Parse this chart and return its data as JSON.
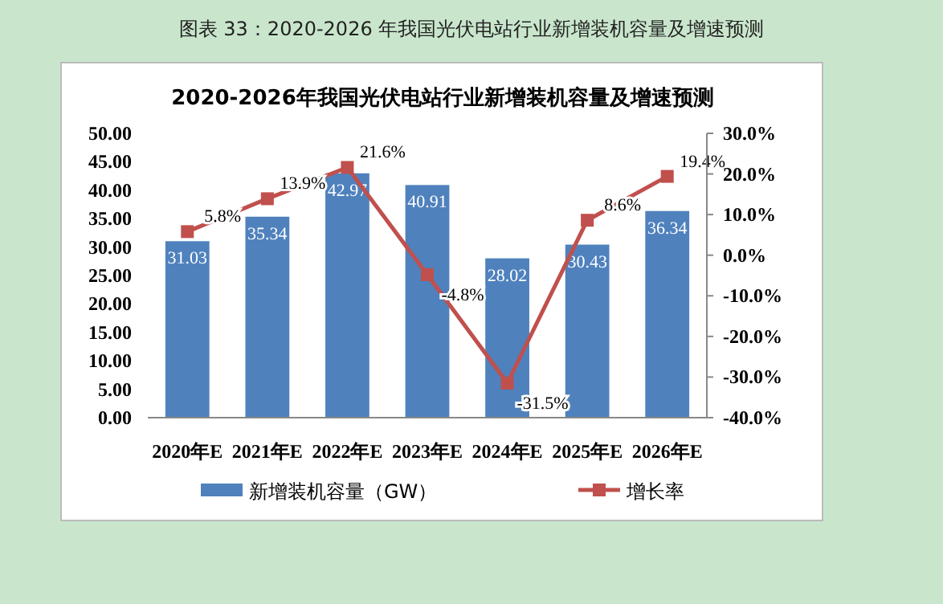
{
  "chart_data": {
    "type": "bar",
    "title": "图表  33：2020-2026 年我国光伏电站行业新增装机容量及增速预测",
    "subtitle": "2020-2026年我国光伏电站行业新增装机容量及增速预测",
    "categories": [
      "2020年E",
      "2021年E",
      "2022年E",
      "2023年E",
      "2024年E",
      "2025年E",
      "2026年E"
    ],
    "series": [
      {
        "name": "新增装机容量（GW）",
        "color": "#4f81bd",
        "values": [
          31.03,
          35.34,
          42.97,
          40.91,
          28.02,
          30.43,
          36.34
        ],
        "value_labels": [
          "31.03",
          "35.34",
          "42.97",
          "40.91",
          "28.02",
          "30.43",
          "36.34"
        ]
      },
      {
        "name": "增长率",
        "type": "line",
        "axis": "y2",
        "color": "#c0504d",
        "marker": "square",
        "values": [
          5.8,
          13.9,
          21.6,
          -4.8,
          -31.5,
          8.6,
          19.4
        ],
        "value_labels": [
          "5.8%",
          "13.9%",
          "21.6%",
          "-4.8%",
          "-31.5%",
          "8.6%",
          "19.4%"
        ]
      }
    ],
    "ylim": [
      0,
      50
    ],
    "yticks": [
      {
        "value": 0,
        "label": "0.00"
      },
      {
        "value": 5,
        "label": "5.00"
      },
      {
        "value": 10,
        "label": "10.00"
      },
      {
        "value": 15,
        "label": "15.00"
      },
      {
        "value": 20,
        "label": "20.00"
      },
      {
        "value": 25,
        "label": "25.00"
      },
      {
        "value": 30,
        "label": "30.00"
      },
      {
        "value": 35,
        "label": "35.00"
      },
      {
        "value": 40,
        "label": "40.00"
      },
      {
        "value": 45,
        "label": "45.00"
      },
      {
        "value": 50,
        "label": "50.00"
      }
    ],
    "y2lim": [
      -40,
      30
    ],
    "y2ticks": [
      {
        "value": -40,
        "label": "-40.0%"
      },
      {
        "value": -30,
        "label": "-30.0%"
      },
      {
        "value": -20,
        "label": "-20.0%"
      },
      {
        "value": -10,
        "label": "-10.0%"
      },
      {
        "value": 0,
        "label": "0.0%"
      },
      {
        "value": 10,
        "label": "10.0%"
      },
      {
        "value": 20,
        "label": "20.0%"
      },
      {
        "value": 30,
        "label": "30.0%"
      }
    ],
    "legend": "bottom",
    "grid": false
  }
}
